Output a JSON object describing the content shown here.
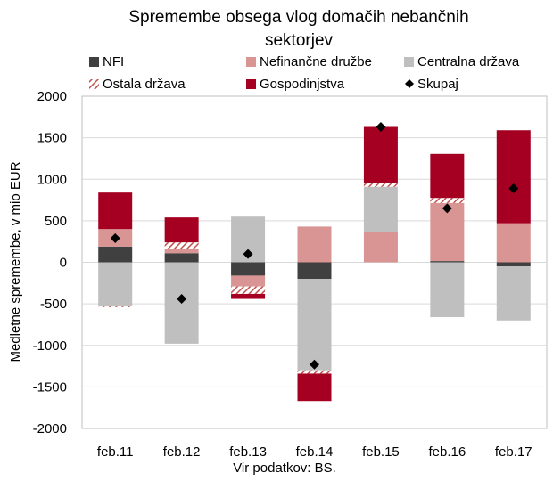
{
  "chart_data": {
    "type": "bar",
    "stacked": true,
    "title": "Spremembe obsega vlog domačih nebančnih sektorjev",
    "ylabel": "Medletne spremembe, v mio EUR",
    "xlabel": "",
    "source": "Vir podatkov: BS.",
    "ylim": [
      -2000,
      2000
    ],
    "yticks": [
      2000,
      1500,
      1000,
      500,
      0,
      -500,
      -1000,
      -1500,
      -2000
    ],
    "grid": true,
    "legend_position": "top",
    "categories": [
      "feb.11",
      "feb.12",
      "feb.13",
      "feb.14",
      "feb.15",
      "feb.16",
      "feb.17"
    ],
    "series": [
      {
        "name": "NFI",
        "kind": "bar",
        "color": "#404040",
        "values": [
          190,
          110,
          -160,
          -200,
          0,
          15,
          -50
        ]
      },
      {
        "name": "Nefinančne družbe",
        "kind": "bar",
        "color": "#d99594",
        "values": [
          210,
          50,
          -130,
          430,
          370,
          700,
          470
        ]
      },
      {
        "name": "Centralna država",
        "kind": "bar",
        "color": "#bfbfbf",
        "values": [
          -520,
          -980,
          550,
          -1100,
          540,
          -660,
          -650
        ]
      },
      {
        "name": "Ostala država",
        "kind": "bar-hatched",
        "color": "#c0504d",
        "values": [
          -20,
          80,
          -90,
          -40,
          50,
          60,
          0
        ]
      },
      {
        "name": "Gospodinjstva",
        "kind": "bar",
        "color": "#a50021",
        "values": [
          440,
          300,
          -60,
          -330,
          670,
          530,
          1120
        ]
      },
      {
        "name": "Skupaj",
        "kind": "marker",
        "color": "#000000",
        "values": [
          290,
          -440,
          100,
          -1230,
          1630,
          650,
          890
        ]
      }
    ]
  }
}
